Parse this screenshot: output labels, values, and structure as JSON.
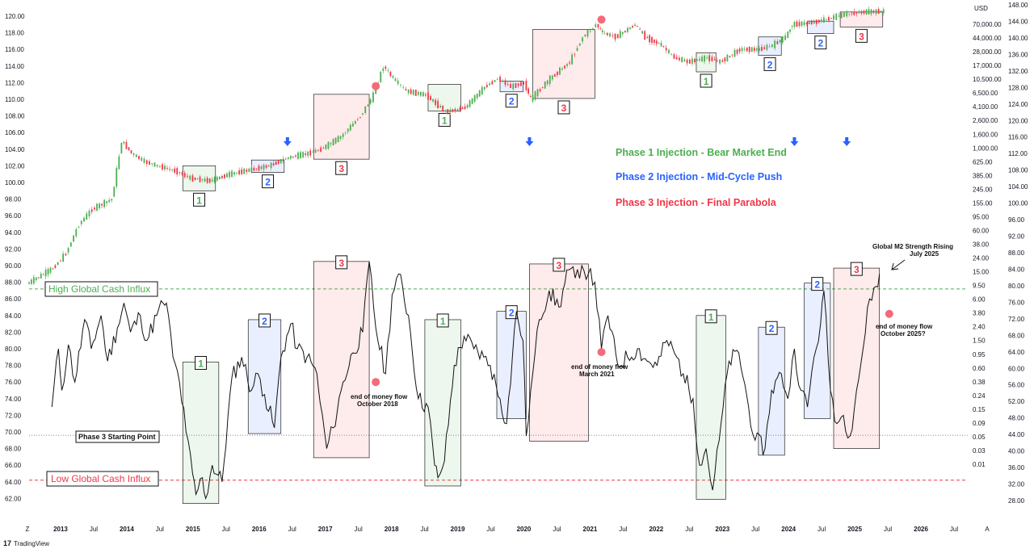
{
  "header": {
    "currency": "USD"
  },
  "branding": {
    "logo_mark": "17",
    "name": "TradingView"
  },
  "legend": [
    {
      "label": "Phase 1 Injection - Bear Market End",
      "color": "#4caf50"
    },
    {
      "label": "Phase 2 Injection - Mid-Cycle Push",
      "color": "#2962ff"
    },
    {
      "label": "Phase 3 Injection - Final Parabola",
      "color": "#f23645"
    }
  ],
  "levels": {
    "high": {
      "label": "High Global Cash Influx",
      "color": "#4caf50",
      "value": 87.2
    },
    "phase3": {
      "label": "Phase 3 Starting Point",
      "color": "#888888",
      "value": 69.6
    },
    "low": {
      "label": "Low Global Cash Influx",
      "color": "#f23645",
      "value": 64.2
    }
  },
  "annotations": {
    "eom_2018": {
      "line1": "end of money flow",
      "line2": "October 2018"
    },
    "eom_2021": {
      "line1": "end of money flow",
      "line2": "March 2021"
    },
    "eom_2025": {
      "line1": "end of money flow",
      "line2": "October 2025?"
    },
    "m2_rising": {
      "line1": "Global M2 Strength Rising",
      "line2": "July 2025"
    }
  },
  "chart_data": [
    {
      "type": "line",
      "subtype": "candlestick",
      "series": [
        {
          "x": [
            2012.5,
            2012.9,
            2013.1,
            2013.3,
            2013.5,
            2013.8,
            2013.95,
            2014.1,
            2014.3,
            2014.5,
            2014.8,
            2015.0,
            2015.3,
            2015.6,
            2015.9,
            2016.2,
            2016.5,
            2016.8,
            2017.0,
            2017.3,
            2017.6,
            2017.8,
            2017.95,
            2018.1,
            2018.3,
            2018.6,
            2018.9,
            2019.2,
            2019.5,
            2019.7,
            2019.9,
            2020.1,
            2020.2,
            2020.5,
            2020.8,
            2021.0,
            2021.2,
            2021.3,
            2021.5,
            2021.8,
            2021.95,
            2022.2,
            2022.4,
            2022.6,
            2022.9,
            2023.1,
            2023.4,
            2023.7,
            2023.9,
            2024.1,
            2024.2,
            2024.5,
            2024.8,
            2025.0,
            2025.3,
            2025.6
          ],
          "y": [
            87.8,
            89.7,
            91.5,
            95.0,
            96.8,
            98.0,
            105.0,
            103.5,
            102.5,
            102.0,
            101.3,
            100.5,
            100.2,
            101.0,
            101.5,
            102.0,
            103.0,
            103.5,
            104.0,
            105.5,
            108.0,
            110.5,
            114.0,
            112.5,
            111.0,
            110.5,
            108.5,
            109.0,
            111.5,
            112.5,
            111.5,
            112.0,
            110.0,
            112.5,
            114.5,
            117.5,
            119.0,
            118.0,
            117.5,
            119.0,
            117.5,
            116.5,
            115.0,
            114.5,
            115.0,
            114.5,
            116.0,
            116.0,
            116.5,
            117.5,
            119.0,
            119.2,
            119.8,
            120.2,
            120.5,
            120.6
          ]
        }
      ],
      "ylim": [
        59,
        121
      ],
      "y_ticks": [
        "62.00",
        "64.00",
        "66.00",
        "68.00",
        "70.00",
        "72.00",
        "74.00",
        "76.00",
        "78.00",
        "80.00",
        "82.00",
        "84.00",
        "86.00",
        "88.00",
        "90.00",
        "92.00",
        "94.00",
        "96.00",
        "98.00",
        "100.00",
        "102.00",
        "104.00",
        "106.00",
        "108.00",
        "110.00",
        "112.00",
        "114.00",
        "116.00",
        "118.00",
        "120.00"
      ],
      "x_labels": [
        "Z",
        "2013",
        "Jul",
        "2014",
        "Jul",
        "2015",
        "Jul",
        "2016",
        "Jul",
        "2017",
        "Jul",
        "2018",
        "Jul",
        "2019",
        "Jul",
        "2020",
        "Jul",
        "2021",
        "Jul",
        "2022",
        "Jul",
        "2023",
        "Jul",
        "2024",
        "Jul",
        "2025",
        "Jul",
        "2026",
        "Jul",
        "A"
      ],
      "phase_boxes": [
        {
          "phase": "1",
          "x": [
            2014.85,
            2015.35
          ],
          "y": [
            99.0,
            102.0
          ]
        },
        {
          "phase": "2",
          "x": [
            2015.9,
            2016.4
          ],
          "y": [
            101.2,
            102.7
          ]
        },
        {
          "phase": "3",
          "x": [
            2016.85,
            2017.7
          ],
          "y": [
            102.8,
            110.6
          ]
        },
        {
          "phase": "1",
          "x": [
            2018.6,
            2019.1
          ],
          "y": [
            108.6,
            111.8
          ]
        },
        {
          "phase": "2",
          "x": [
            2019.7,
            2020.05
          ],
          "y": [
            110.9,
            112.2
          ]
        },
        {
          "phase": "3",
          "x": [
            2020.2,
            2021.15
          ],
          "y": [
            110.1,
            118.4
          ]
        },
        {
          "phase": "1",
          "x": [
            2022.7,
            2023.0
          ],
          "y": [
            113.3,
            115.6
          ]
        },
        {
          "phase": "2",
          "x": [
            2023.65,
            2024.0
          ],
          "y": [
            115.3,
            117.5
          ]
        },
        {
          "phase": "2",
          "x": [
            2024.4,
            2024.8
          ],
          "y": [
            117.9,
            119.4
          ]
        },
        {
          "phase": "3",
          "x": [
            2024.9,
            2025.55
          ],
          "y": [
            118.7,
            120.5
          ]
        }
      ],
      "arrows": [
        2016.45,
        2020.15,
        2024.2,
        2025.0
      ],
      "tops": [
        {
          "x": 2017.8,
          "y": 111.0
        },
        {
          "x": 2021.25,
          "y": 119.0
        }
      ]
    },
    {
      "type": "line",
      "series": [
        {
          "x": [
            2012.85,
            2012.95,
            2013.0,
            2013.1,
            2013.2,
            2013.35,
            2013.45,
            2013.6,
            2013.7,
            2013.85,
            2013.95,
            2014.05,
            2014.2,
            2014.3,
            2014.45,
            2014.55,
            2014.6,
            2014.7,
            2014.8,
            2014.9,
            2015.0,
            2015.05,
            2015.15,
            2015.2,
            2015.3,
            2015.45,
            2015.6,
            2015.75,
            2015.9,
            2016.0,
            2016.1,
            2016.25,
            2016.35,
            2016.5,
            2016.6,
            2016.75,
            2016.9,
            2016.95,
            2017.05,
            2017.15,
            2017.3,
            2017.45,
            2017.6,
            2017.7,
            2017.8,
            2017.95,
            2018.05,
            2018.15,
            2018.3,
            2018.45,
            2018.6,
            2018.7,
            2018.75,
            2018.85,
            2019.0,
            2019.15,
            2019.3,
            2019.45,
            2019.55,
            2019.7,
            2019.8,
            2019.95,
            2020.05,
            2020.1,
            2020.2,
            2020.3,
            2020.45,
            2020.6,
            2020.75,
            2020.85,
            2020.95,
            2021.05,
            2021.15,
            2021.25,
            2021.35,
            2021.5,
            2021.65,
            2021.8,
            2021.95,
            2022.1,
            2022.25,
            2022.4,
            2022.5,
            2022.65,
            2022.75,
            2022.85,
            2022.95,
            2023.05,
            2023.2,
            2023.35,
            2023.5,
            2023.6,
            2023.75,
            2023.85,
            2024.0,
            2024.1,
            2024.2,
            2024.3,
            2024.4,
            2024.5,
            2024.6,
            2024.65,
            2024.75,
            2024.85,
            2024.95,
            2025.05,
            2025.15,
            2025.25,
            2025.35,
            2025.45,
            2025.5
          ],
          "y": [
            73.0,
            80.0,
            75.0,
            80.5,
            76.0,
            83.5,
            80.0,
            84.0,
            78.5,
            82.5,
            85.5,
            82.0,
            84.0,
            81.0,
            84.0,
            85.5,
            85.5,
            79.0,
            76.0,
            70.0,
            65.0,
            62.5,
            64.5,
            62.0,
            66.0,
            64.0,
            76.5,
            79.0,
            75.0,
            77.0,
            74.5,
            70.5,
            79.0,
            83.0,
            80.0,
            79.0,
            77.0,
            73.5,
            68.0,
            70.5,
            76.0,
            79.5,
            82.0,
            90.5,
            82.5,
            77.0,
            86.5,
            89.0,
            84.0,
            74.0,
            73.0,
            66.0,
            64.5,
            66.5,
            78.0,
            81.5,
            80.0,
            79.0,
            78.0,
            74.0,
            71.0,
            84.5,
            81.0,
            69.5,
            77.0,
            83.5,
            87.0,
            85.0,
            89.5,
            88.5,
            90.0,
            89.0,
            88.0,
            80.0,
            84.0,
            78.0,
            79.0,
            80.0,
            78.5,
            78.0,
            81.0,
            79.0,
            77.0,
            74.0,
            66.0,
            68.0,
            63.0,
            69.0,
            78.5,
            79.5,
            73.0,
            69.0,
            68.0,
            75.0,
            77.0,
            74.0,
            80.0,
            75.0,
            73.0,
            79.0,
            83.0,
            87.0,
            75.0,
            71.0,
            72.0,
            69.5,
            75.0,
            80.0,
            86.0,
            87.5,
            89.0
          ]
        }
      ],
      "phase_boxes": [
        {
          "phase": "1",
          "x": [
            2014.85,
            2015.4
          ],
          "y": [
            61.4,
            78.4
          ]
        },
        {
          "phase": "2",
          "x": [
            2015.85,
            2016.35
          ],
          "y": [
            69.8,
            83.5
          ]
        },
        {
          "phase": "3",
          "x": [
            2016.85,
            2017.7
          ],
          "y": [
            66.9,
            90.5
          ]
        },
        {
          "phase": "1",
          "x": [
            2018.55,
            2019.1
          ],
          "y": [
            63.5,
            83.5
          ]
        },
        {
          "phase": "2",
          "x": [
            2019.65,
            2020.1
          ],
          "y": [
            71.6,
            84.5
          ]
        },
        {
          "phase": "3",
          "x": [
            2020.15,
            2021.05
          ],
          "y": [
            68.9,
            90.2
          ]
        },
        {
          "phase": "1",
          "x": [
            2022.7,
            2023.15
          ],
          "y": [
            61.9,
            84.0
          ]
        },
        {
          "phase": "2",
          "x": [
            2023.65,
            2024.05
          ],
          "y": [
            67.2,
            82.6
          ]
        },
        {
          "phase": "2",
          "x": [
            2024.35,
            2024.75
          ],
          "y": [
            71.6,
            87.9
          ]
        },
        {
          "phase": "3",
          "x": [
            2024.8,
            2025.5
          ],
          "y": [
            68.0,
            89.7
          ]
        }
      ],
      "money_flow_ends": [
        {
          "x": 2017.8,
          "y": 76.0
        },
        {
          "x": 2021.25,
          "y": 79.6
        },
        {
          "x": 2025.65,
          "y": 84.2
        }
      ],
      "right_axis_ticks": [
        "0.01",
        "0.03",
        "0.05",
        "0.09",
        "0.15",
        "0.24",
        "0.38",
        "0.60",
        "0.95",
        "1.50",
        "2.40",
        "3.80",
        "6.00",
        "9.50",
        "15.00",
        "24.00",
        "38.00",
        "60.00",
        "95.00",
        "155.00",
        "245.00",
        "385.00",
        "625.00",
        "1,000.00",
        "1,600.00",
        "2,600.00",
        "4,100.00",
        "6,500.00",
        "10,500.00",
        "17,000.00",
        "28,000.00",
        "44,000.00",
        "70,000.00"
      ],
      "far_right_ticks": [
        "28.00",
        "32.00",
        "36.00",
        "40.00",
        "44.00",
        "48.00",
        "52.00",
        "56.00",
        "60.00",
        "64.00",
        "68.00",
        "72.00",
        "76.00",
        "80.00",
        "84.00",
        "88.00",
        "92.00",
        "96.00",
        "100.00",
        "104.00",
        "108.00",
        "112.00",
        "116.00",
        "120.00",
        "124.00",
        "128.00",
        "132.00",
        "136.00",
        "140.00",
        "144.00",
        "148.00"
      ]
    }
  ]
}
